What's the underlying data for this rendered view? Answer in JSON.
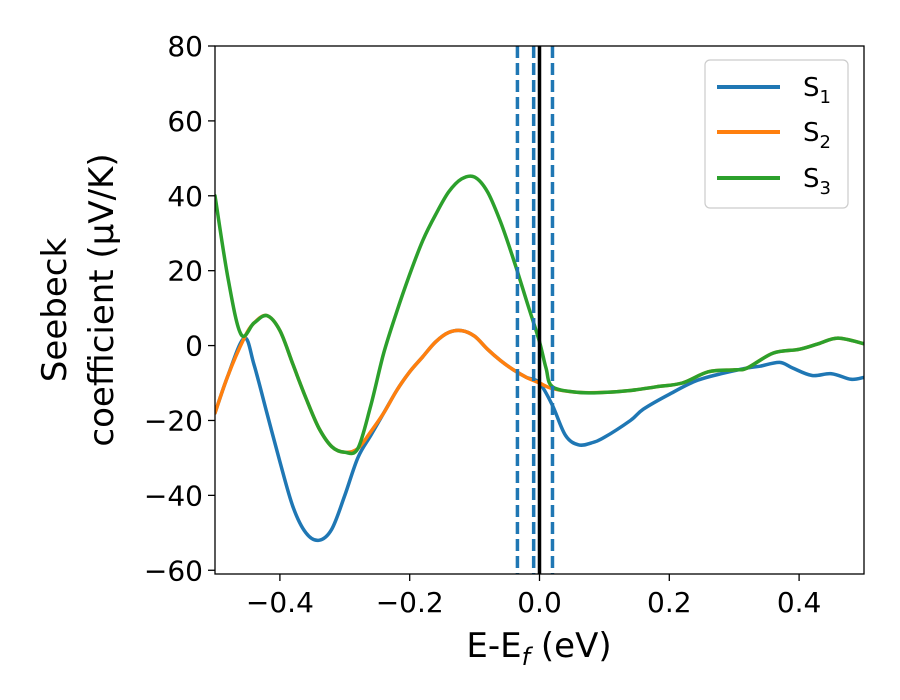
{
  "chart_data": {
    "type": "line",
    "title": "",
    "xlabel": {
      "main": "E-E",
      "sub": "f",
      "suffix": " (eV)"
    },
    "ylabel": {
      "line1": "Seebeck",
      "line2": "coefficient  (μV/K)"
    },
    "xlim": [
      -0.5,
      0.5
    ],
    "ylim": [
      -61,
      80
    ],
    "xticks": [
      -0.4,
      -0.2,
      0.0,
      0.2,
      0.4
    ],
    "xtick_labels": [
      "−0.4",
      "−0.2",
      "0.0",
      "0.2",
      "0.4"
    ],
    "yticks": [
      -60,
      -40,
      -20,
      0,
      20,
      40,
      60,
      80
    ],
    "ytick_labels": [
      "−60",
      "−40",
      "−20",
      "0",
      "20",
      "40",
      "60",
      "80"
    ],
    "grid": false,
    "legend_position": "top-right",
    "series": [
      {
        "name": "S",
        "sub": "1",
        "color": "#1f77b4",
        "x": [
          -0.5,
          -0.48,
          -0.455,
          -0.44,
          -0.42,
          -0.4,
          -0.38,
          -0.36,
          -0.34,
          -0.32,
          -0.3,
          -0.28,
          -0.26,
          -0.24,
          -0.22,
          -0.2,
          -0.18,
          -0.16,
          -0.14,
          -0.12,
          -0.1,
          -0.08,
          -0.06,
          -0.04,
          -0.02,
          0.0,
          0.02,
          0.04,
          0.06,
          0.08,
          0.1,
          0.14,
          0.16,
          0.2,
          0.24,
          0.28,
          0.32,
          0.34,
          0.37,
          0.39,
          0.42,
          0.45,
          0.48,
          0.5
        ],
        "y": [
          -18,
          -8,
          2,
          -5,
          -18,
          -31,
          -43,
          -50,
          -52,
          -49,
          -40,
          -30,
          -24,
          -18,
          -12,
          -7,
          -3,
          1,
          3.5,
          4,
          2.5,
          -1,
          -4,
          -6.5,
          -8.5,
          -10,
          -16,
          -24,
          -26.5,
          -26,
          -24.5,
          -20,
          -17,
          -13,
          -9.5,
          -7.5,
          -6,
          -5.5,
          -4.5,
          -6,
          -8,
          -7.5,
          -9,
          -8.5
        ]
      },
      {
        "name": "S",
        "sub": "2",
        "color": "#ff7f0e",
        "x": [
          -0.5,
          -0.48,
          -0.455,
          -0.44,
          -0.42,
          -0.4,
          -0.38,
          -0.36,
          -0.34,
          -0.32,
          -0.3,
          -0.28,
          -0.26,
          -0.24,
          -0.22,
          -0.2,
          -0.18,
          -0.16,
          -0.14,
          -0.12,
          -0.1,
          -0.08,
          -0.06,
          -0.04,
          -0.02,
          0.0,
          0.02,
          0.06,
          0.1,
          0.14,
          0.18,
          0.22,
          0.26,
          0.3,
          0.32,
          0.36,
          0.4,
          0.43,
          0.46,
          0.5
        ],
        "y": [
          -18,
          -8,
          2,
          6,
          8,
          4,
          -5,
          -14,
          -22,
          -27,
          -28.5,
          -27.5,
          -23,
          -18,
          -12,
          -7,
          -3,
          1,
          3.5,
          4,
          2.5,
          -1,
          -4,
          -6.5,
          -8.5,
          -10,
          -11.5,
          -12.5,
          -12.5,
          -12,
          -11,
          -10,
          -7,
          -6.5,
          -6,
          -2,
          -1,
          0.5,
          2,
          0.5
        ]
      },
      {
        "name": "S",
        "sub": "3",
        "color": "#2ca02c",
        "x": [
          -0.5,
          -0.48,
          -0.46,
          -0.44,
          -0.42,
          -0.4,
          -0.38,
          -0.36,
          -0.34,
          -0.32,
          -0.3,
          -0.28,
          -0.26,
          -0.24,
          -0.22,
          -0.2,
          -0.18,
          -0.16,
          -0.14,
          -0.12,
          -0.1,
          -0.08,
          -0.06,
          -0.04,
          -0.02,
          0.0,
          0.01,
          0.02,
          0.06,
          0.1,
          0.14,
          0.18,
          0.22,
          0.26,
          0.3,
          0.32,
          0.36,
          0.4,
          0.43,
          0.46,
          0.5
        ],
        "y": [
          40,
          18,
          3,
          6,
          8,
          4,
          -5,
          -14,
          -22,
          -27,
          -28.5,
          -27.5,
          -16,
          -2,
          9,
          19,
          28,
          35,
          41,
          44.5,
          45,
          41,
          33,
          23,
          12,
          1,
          -6,
          -11,
          -12.5,
          -12.5,
          -12,
          -11,
          -10,
          -7,
          -6.5,
          -6,
          -2,
          -1,
          0.5,
          2,
          0.5
        ]
      }
    ],
    "vlines": [
      {
        "x": -0.034,
        "style": "dashed",
        "color": "#1f77b4"
      },
      {
        "x": -0.009,
        "style": "dashed",
        "color": "#1f77b4"
      },
      {
        "x": 0.0,
        "style": "solid",
        "color": "#000000"
      },
      {
        "x": 0.02,
        "style": "dashed",
        "color": "#1f77b4"
      }
    ]
  }
}
